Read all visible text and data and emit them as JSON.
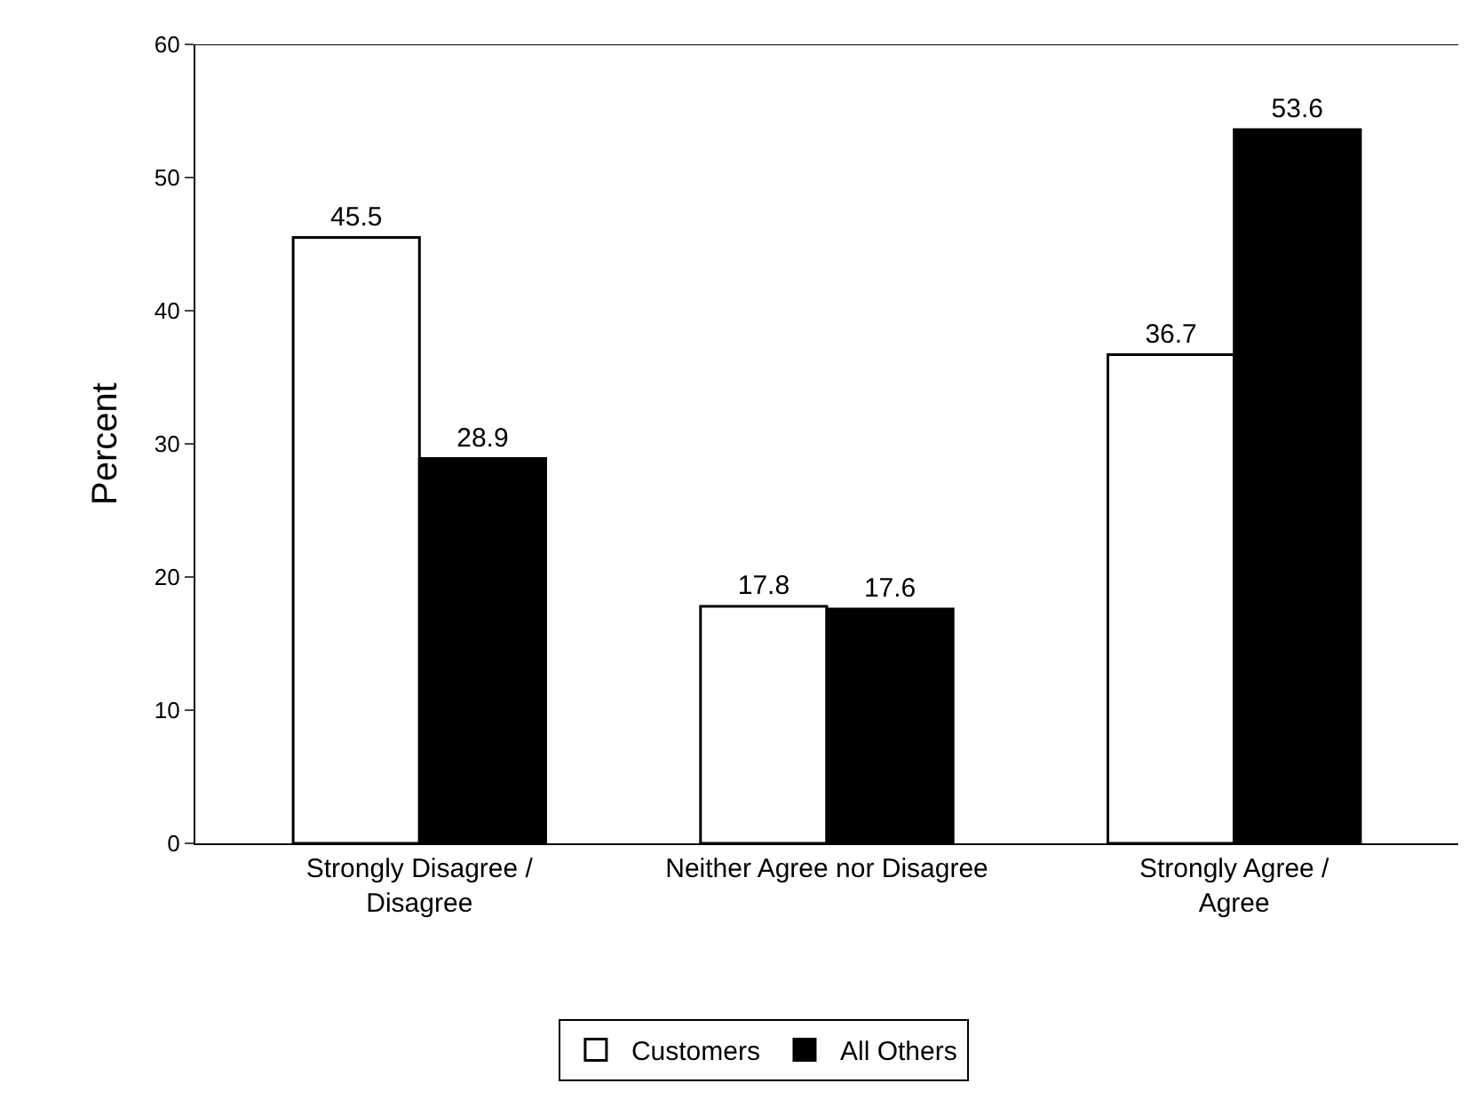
{
  "chart_data": {
    "type": "bar",
    "ylabel": "Percent",
    "categories": [
      "Strongly Disagree /\nDisagree",
      "Neither Agree nor Disagree",
      "Strongly Agree /\nAgree"
    ],
    "series": [
      {
        "name": "Customers",
        "color": "#ffffff",
        "values": [
          45.5,
          17.8,
          36.7
        ]
      },
      {
        "name": "All Others",
        "color": "#000000",
        "values": [
          28.9,
          17.6,
          53.6
        ]
      }
    ],
    "ylim": [
      0,
      60
    ],
    "yticks": [
      0,
      10,
      20,
      30,
      40,
      50,
      60
    ],
    "data_labels": true,
    "legend": "bottom"
  }
}
